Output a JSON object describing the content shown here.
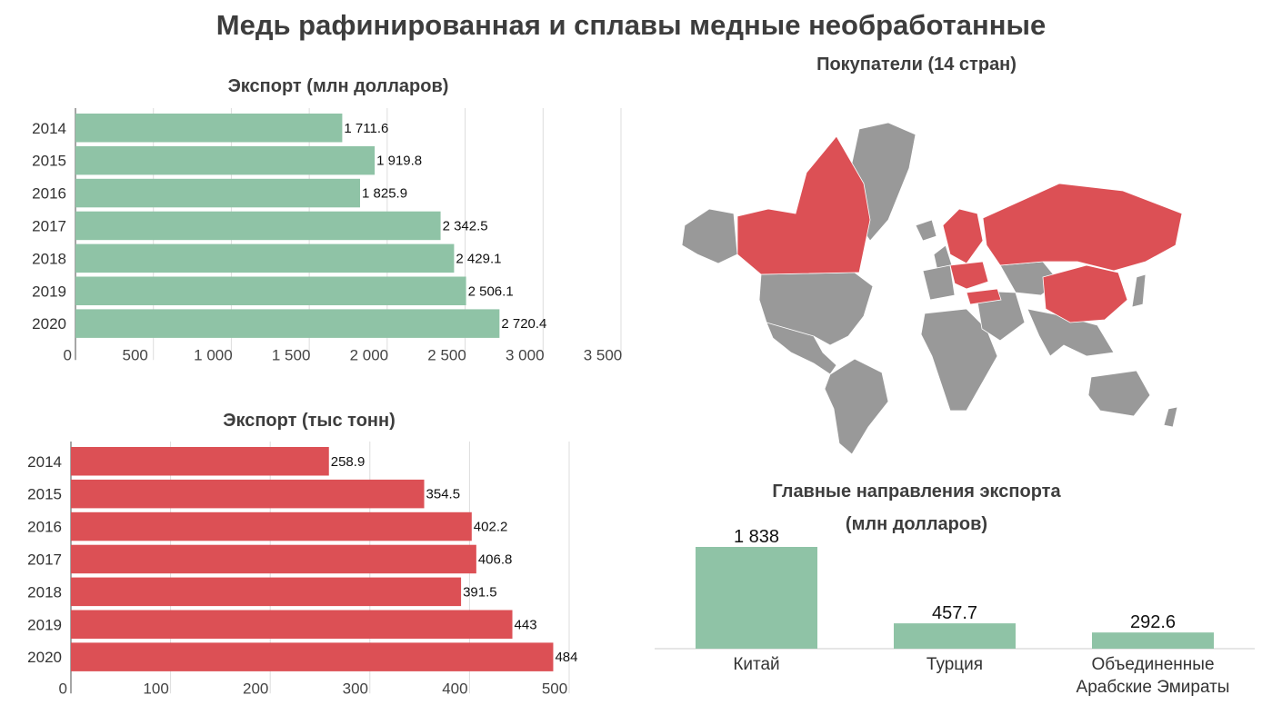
{
  "title": "Медь рафинированная и сплавы медные необработанные",
  "colors": {
    "green": "#8fc3a6",
    "red": "#dc5055",
    "grey": "#999999",
    "grid": "#dddddd",
    "axis": "#888888"
  },
  "chart_data": [
    {
      "type": "bar",
      "orientation": "horizontal",
      "title": "Экспорт (млн долларов)",
      "categories": [
        "2014",
        "2015",
        "2016",
        "2017",
        "2018",
        "2019",
        "2020"
      ],
      "values": [
        1711.6,
        1919.8,
        1825.9,
        2342.5,
        2429.1,
        2506.1,
        2720.4
      ],
      "value_labels": [
        "1 711.6",
        "1 919.8",
        "1 825.9",
        "2 342.5",
        "2 429.1",
        "2 506.1",
        "2 720.4"
      ],
      "xlim": [
        0,
        3500
      ],
      "ticks": [
        0,
        500,
        1000,
        1500,
        2000,
        2500,
        3000,
        3500
      ],
      "tick_labels": [
        "0",
        "500",
        "1 000",
        "1 500",
        "2 000",
        "2 500",
        "3 000",
        "3 500"
      ],
      "grid": true,
      "color": "#8fc3a6"
    },
    {
      "type": "bar",
      "orientation": "horizontal",
      "title": "Экспорт (тыс тонн)",
      "categories": [
        "2014",
        "2015",
        "2016",
        "2017",
        "2018",
        "2019",
        "2020"
      ],
      "values": [
        258.9,
        354.5,
        402.2,
        406.8,
        391.5,
        443,
        484
      ],
      "value_labels": [
        "258.9",
        "354.5",
        "402.2",
        "406.8",
        "391.5",
        "443",
        "484"
      ],
      "xlim": [
        0,
        500
      ],
      "ticks": [
        0,
        100,
        200,
        300,
        400,
        500
      ],
      "tick_labels": [
        "0",
        "100",
        "200",
        "300",
        "400",
        "500"
      ],
      "grid": true,
      "color": "#dc5055"
    },
    {
      "type": "bar",
      "orientation": "vertical",
      "title": "Главные направления экспорта",
      "subtitle": "(млн долларов)",
      "categories": [
        [
          "Китай"
        ],
        [
          "Турция"
        ],
        [
          "Объединенные",
          "Арабские Эмираты"
        ]
      ],
      "values": [
        1838,
        457.7,
        292.6
      ],
      "value_labels": [
        "1 838",
        "457.7",
        "292.6"
      ],
      "color": "#8fc3a6"
    }
  ],
  "map": {
    "title": "Покупатели (14 стран)",
    "buyer_color": "#dc5055",
    "other_color": "#999999",
    "buyers": [
      "Канада",
      "Россия",
      "Китай",
      "Турция",
      "Финляндия",
      "Норвегия",
      "Швеция",
      "Польша",
      "Германия",
      "Венгрия",
      "Австрия",
      "Румыния",
      "Чехия",
      "Беларусь"
    ]
  }
}
